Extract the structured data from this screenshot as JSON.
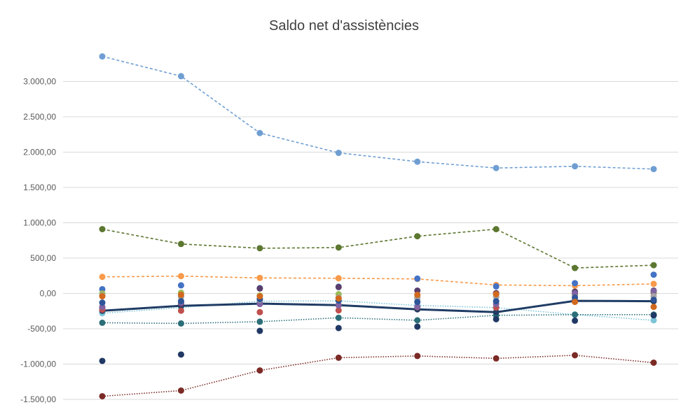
{
  "chart_data": {
    "type": "line",
    "title": "Saldo net d'assistències",
    "xlabel": "",
    "ylabel": "",
    "x": [
      1,
      2,
      3,
      4,
      5,
      6,
      7,
      8
    ],
    "ylim": [
      -1500,
      3500
    ],
    "yticks": [
      -1500,
      -1000,
      -500,
      0,
      500,
      1000,
      1500,
      2000,
      2500,
      3000
    ],
    "ytick_labels": [
      "-1.500,00",
      "-1.000,00",
      "-500,00",
      "0,00",
      "500,00",
      "1.000,00",
      "1.500,00",
      "2.000,00",
      "2.500,00",
      "3.000,00"
    ],
    "grid": true,
    "legend": "none",
    "series": [
      {
        "color": "#6f9ed3",
        "line": "dashed",
        "values": [
          3355,
          3075,
          2270,
          1990,
          1865,
          1775,
          1800,
          1760
        ]
      },
      {
        "color": "#5c7730",
        "line": "dashed",
        "values": [
          910,
          700,
          640,
          650,
          810,
          910,
          360,
          400
        ]
      },
      {
        "color": "#f79a4a",
        "line": "dashed",
        "values": [
          235,
          245,
          220,
          215,
          205,
          120,
          110,
          135
        ]
      },
      {
        "color": "#7cc4d8",
        "line": "dotted",
        "values": [
          -280,
          -200,
          -110,
          -105,
          -170,
          -200,
          -300,
          -380
        ]
      },
      {
        "color": "#2b6e78",
        "line": "dotted",
        "values": [
          -415,
          -425,
          -400,
          -345,
          -380,
          -310,
          -300,
          -300
        ]
      },
      {
        "color": "#7b2a25",
        "line": "dotted",
        "values": [
          -1455,
          -1375,
          -1090,
          -910,
          -885,
          -920,
          -875,
          -980
        ]
      },
      {
        "color": "#1f3c64",
        "line": "solid",
        "values": [
          -245,
          -175,
          -145,
          -165,
          -225,
          -265,
          -105,
          -110
        ]
      },
      {
        "color": "#4472c4",
        "line": "none",
        "values": [
          60,
          115,
          75,
          95,
          210,
          100,
          145,
          265
        ]
      },
      {
        "color": "#203864",
        "line": "none",
        "values": [
          -955,
          -865,
          -530,
          -490,
          -470,
          -365,
          -385,
          -310
        ]
      },
      {
        "color": "#5a3e6b",
        "line": "none",
        "values": [
          -200,
          -145,
          70,
          90,
          40,
          5,
          25,
          40
        ]
      },
      {
        "color": "#c0504d",
        "line": "none",
        "values": [
          -230,
          -245,
          -265,
          -240,
          -195,
          -200,
          -15,
          5
        ]
      },
      {
        "color": "#9bbb59",
        "line": "none",
        "values": [
          0,
          10,
          -30,
          -10,
          -45,
          -20,
          -20,
          20
        ]
      },
      {
        "color": "#8064a2",
        "line": "none",
        "values": [
          -190,
          -130,
          -150,
          -170,
          -190,
          -150,
          0,
          30
        ]
      },
      {
        "color": "#a5a5a5",
        "line": "none",
        "values": [
          -30,
          -50,
          -90,
          -60,
          -70,
          -50,
          -60,
          -40
        ]
      },
      {
        "color": "#2e5597",
        "line": "none",
        "values": [
          -130,
          -110,
          -80,
          -100,
          -120,
          -110,
          -60,
          -90
        ]
      },
      {
        "color": "#d2691e",
        "line": "none",
        "values": [
          -40,
          -20,
          -40,
          -70,
          -20,
          -10,
          -120,
          -190
        ]
      }
    ]
  }
}
